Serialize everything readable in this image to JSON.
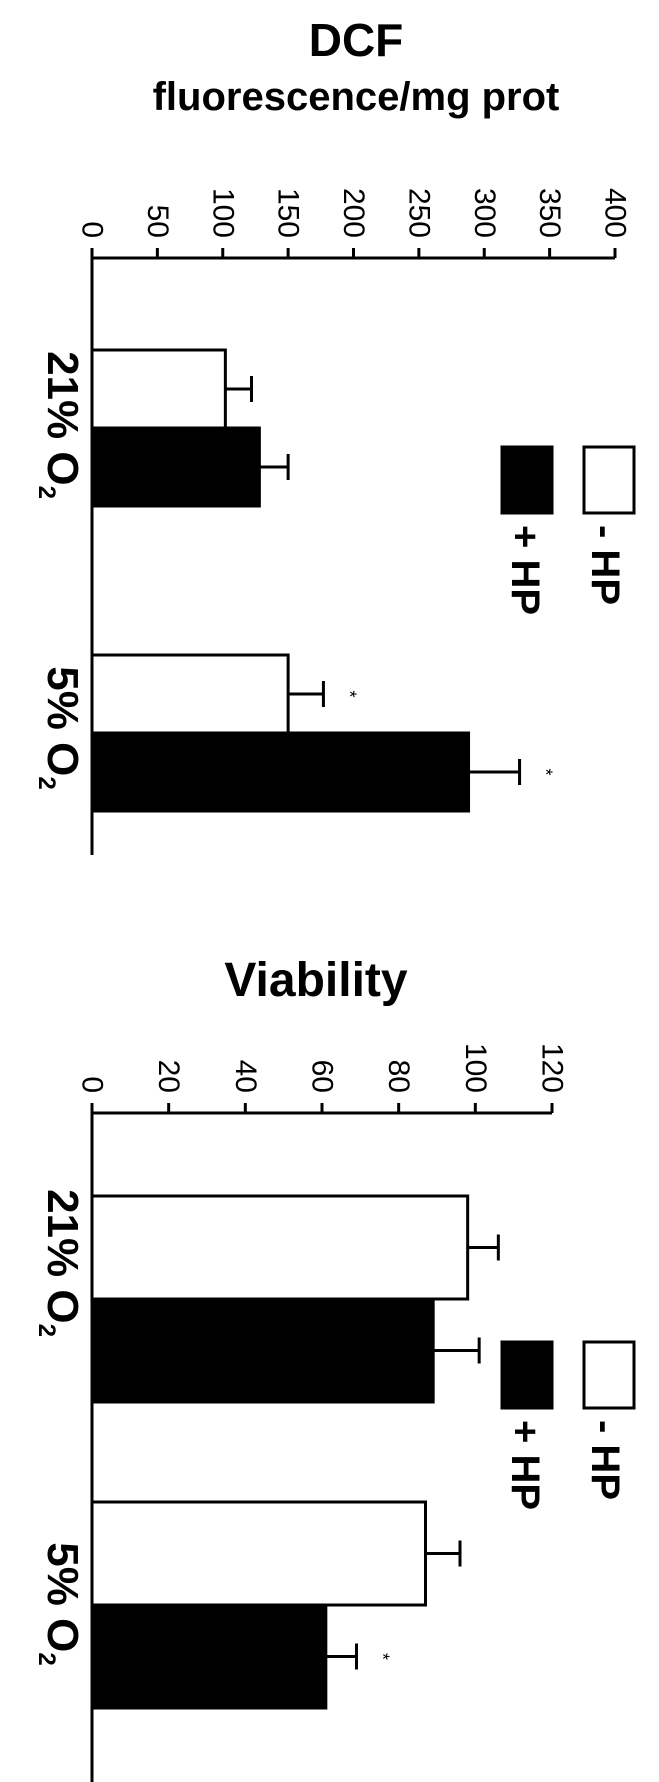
{
  "chart_data": [
    {
      "type": "bar",
      "title": "DCF",
      "ylabel": "fluorescence/mg prot",
      "ylim": [
        0,
        400
      ],
      "yticks": [
        "0",
        "50",
        "100",
        "150",
        "200",
        "250",
        "300",
        "350",
        "400"
      ],
      "categories": [
        "21% O2",
        "5% O2"
      ],
      "series": [
        {
          "name": "- HP",
          "color": "#ffffff",
          "values": [
            102,
            150
          ],
          "errors": [
            20,
            27
          ],
          "significant": [
            false,
            true
          ]
        },
        {
          "name": "+ HP",
          "color": "#000000",
          "values": [
            128,
            288
          ],
          "errors": [
            22,
            39
          ],
          "significant": [
            false,
            true
          ]
        }
      ],
      "significance_marker": "*",
      "legend_position": "right"
    },
    {
      "type": "bar",
      "title": "Viability",
      "ylabel": "",
      "ylim": [
        0,
        120
      ],
      "yticks": [
        "0",
        "20",
        "40",
        "60",
        "80",
        "100",
        "120"
      ],
      "categories": [
        "21% O2",
        "5% O2"
      ],
      "series": [
        {
          "name": "- HP",
          "color": "#ffffff",
          "values": [
            98,
            87
          ],
          "errors": [
            8,
            9
          ],
          "significant": [
            false,
            false
          ]
        },
        {
          "name": "+ HP",
          "color": "#000000",
          "values": [
            89,
            61
          ],
          "errors": [
            12,
            8
          ],
          "significant": [
            false,
            true
          ]
        }
      ],
      "significance_marker": "*",
      "legend_position": "right"
    }
  ]
}
